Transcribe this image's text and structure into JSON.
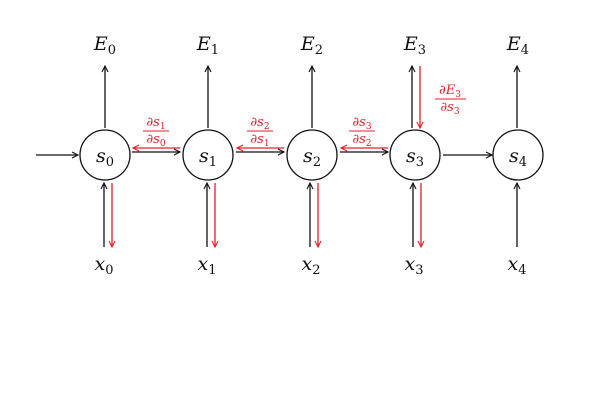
{
  "diagram": {
    "nodes": [
      {
        "id": "s0",
        "var": "s",
        "sub": "0",
        "input_var": "x",
        "input_sub": "0",
        "error_var": "E",
        "error_sub": "0"
      },
      {
        "id": "s1",
        "var": "s",
        "sub": "1",
        "input_var": "x",
        "input_sub": "1",
        "error_var": "E",
        "error_sub": "1"
      },
      {
        "id": "s2",
        "var": "s",
        "sub": "2",
        "input_var": "x",
        "input_sub": "2",
        "error_var": "E",
        "error_sub": "2"
      },
      {
        "id": "s3",
        "var": "s",
        "sub": "3",
        "input_var": "x",
        "input_sub": "3",
        "error_var": "E",
        "error_sub": "3"
      },
      {
        "id": "s4",
        "var": "s",
        "sub": "4",
        "input_var": "x",
        "input_sub": "4",
        "error_var": "E",
        "error_sub": "4"
      }
    ],
    "gradient_labels": [
      {
        "between": "s0-s1",
        "num_var": "∂s",
        "num_sub": "1",
        "den_var": "∂s",
        "den_sub": "0"
      },
      {
        "between": "s1-s2",
        "num_var": "∂s",
        "num_sub": "2",
        "den_var": "∂s",
        "den_sub": "1"
      },
      {
        "between": "s2-s3",
        "num_var": "∂s",
        "num_sub": "3",
        "den_var": "∂s",
        "den_sub": "2"
      }
    ],
    "error_gradient_label": {
      "node": "s3",
      "num_var": "∂E",
      "num_sub": "3",
      "den_var": "∂s",
      "den_sub": "3"
    },
    "backprop_paths": {
      "horizontal": [
        "s1-s0",
        "s2-s1",
        "s3-s2"
      ],
      "input": [
        "s0",
        "s1",
        "s2",
        "s3"
      ],
      "error": [
        "s3"
      ]
    },
    "colors": {
      "forward": "#111111",
      "backward": "#e0202a"
    }
  }
}
